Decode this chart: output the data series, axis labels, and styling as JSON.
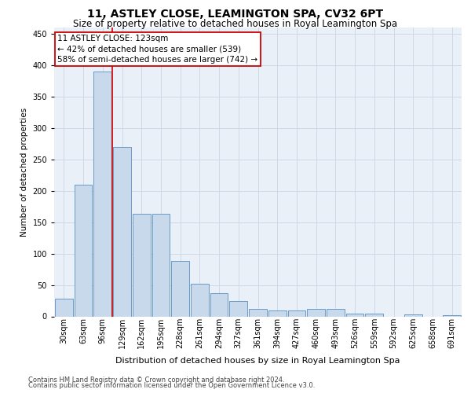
{
  "title1": "11, ASTLEY CLOSE, LEAMINGTON SPA, CV32 6PT",
  "title2": "Size of property relative to detached houses in Royal Leamington Spa",
  "xlabel": "Distribution of detached houses by size in Royal Leamington Spa",
  "ylabel": "Number of detached properties",
  "footer1": "Contains HM Land Registry data © Crown copyright and database right 2024.",
  "footer2": "Contains public sector information licensed under the Open Government Licence v3.0.",
  "annotation_line1": "11 ASTLEY CLOSE: 123sqm",
  "annotation_line2": "← 42% of detached houses are smaller (539)",
  "annotation_line3": "58% of semi-detached houses are larger (742) →",
  "categories": [
    "30sqm",
    "63sqm",
    "96sqm",
    "129sqm",
    "162sqm",
    "195sqm",
    "228sqm",
    "261sqm",
    "294sqm",
    "327sqm",
    "361sqm",
    "394sqm",
    "427sqm",
    "460sqm",
    "493sqm",
    "526sqm",
    "559sqm",
    "592sqm",
    "625sqm",
    "658sqm",
    "691sqm"
  ],
  "values": [
    28,
    210,
    390,
    270,
    163,
    163,
    88,
    52,
    37,
    25,
    12,
    10,
    10,
    12,
    12,
    5,
    5,
    0,
    3,
    0,
    2
  ],
  "bar_color": "#c8d9ec",
  "bar_edge_color": "#5a8fc0",
  "grid_color": "#d0d8e8",
  "bg_color": "#eaf0f8",
  "vline_color": "#cc0000",
  "vline_x_idx": 3,
  "annotation_box_edge": "#cc0000",
  "ylim": [
    0,
    460
  ],
  "yticks": [
    0,
    50,
    100,
    150,
    200,
    250,
    300,
    350,
    400,
    450
  ],
  "title1_fontsize": 10,
  "title2_fontsize": 8.5,
  "ylabel_fontsize": 7.5,
  "xlabel_fontsize": 8,
  "tick_fontsize": 7,
  "footer_fontsize": 6,
  "annotation_fontsize": 7.5
}
